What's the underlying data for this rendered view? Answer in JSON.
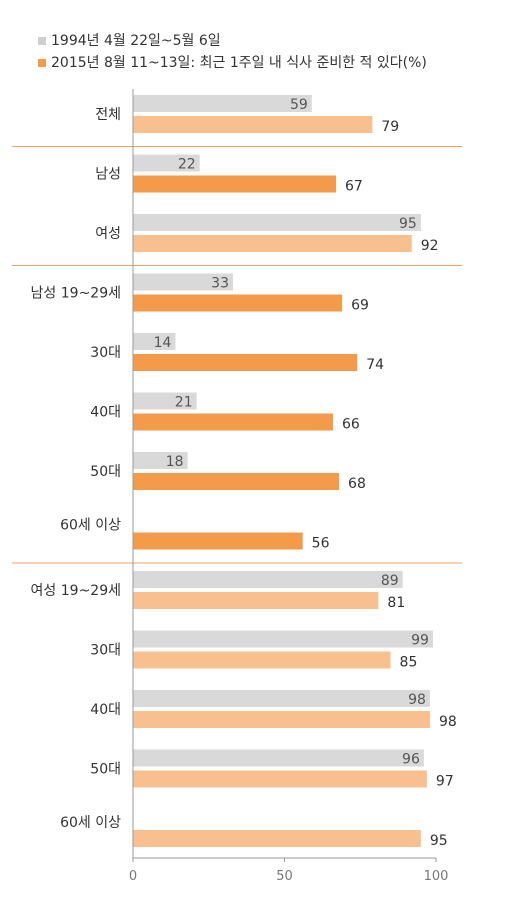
{
  "colors": {
    "gray": "#d9d9d9",
    "orange": "#f39a4b",
    "light_orange": "#f8c08f",
    "separator": "#f0a060",
    "axis": "#999999"
  },
  "legend": {
    "series_1994": "1994년 4월 22일~5월 6일",
    "series_2015": "2015년 8월 11~13일: 최근 1주일 내 식사 준비한 적 있다(%)"
  },
  "chart_data": {
    "type": "bar",
    "orientation": "horizontal",
    "xlim": [
      0,
      100
    ],
    "xticks": [
      "0",
      "50",
      "100"
    ],
    "series": [
      {
        "name": "1994년 4월 22일~5월 6일"
      },
      {
        "name": "2015년 8월 11~13일: 최근 1주일 내 식사 준비한 적 있다(%)"
      }
    ],
    "categories": [
      {
        "label": "전체",
        "v1994": 59,
        "v2015": 79,
        "tone": "light"
      },
      {
        "label": "남성",
        "v1994": 22,
        "v2015": 67,
        "tone": "dark"
      },
      {
        "label": "여성",
        "v1994": 95,
        "v2015": 92,
        "tone": "light"
      },
      {
        "label": "남성 19~29세",
        "v1994": 33,
        "v2015": 69,
        "tone": "dark"
      },
      {
        "label": "30대",
        "v1994": 14,
        "v2015": 74,
        "tone": "dark"
      },
      {
        "label": "40대",
        "v1994": 21,
        "v2015": 66,
        "tone": "dark"
      },
      {
        "label": "50대",
        "v1994": 18,
        "v2015": 68,
        "tone": "dark"
      },
      {
        "label": "60세 이상",
        "v1994": null,
        "v2015": 56,
        "tone": "dark"
      },
      {
        "label": "여성 19~29세",
        "v1994": 89,
        "v2015": 81,
        "tone": "light"
      },
      {
        "label": "30대",
        "v1994": 99,
        "v2015": 85,
        "tone": "light"
      },
      {
        "label": "40대",
        "v1994": 98,
        "v2015": 98,
        "tone": "light"
      },
      {
        "label": "50대",
        "v1994": 96,
        "v2015": 97,
        "tone": "light"
      },
      {
        "label": "60세 이상",
        "v1994": null,
        "v2015": 95,
        "tone": "light"
      }
    ]
  }
}
